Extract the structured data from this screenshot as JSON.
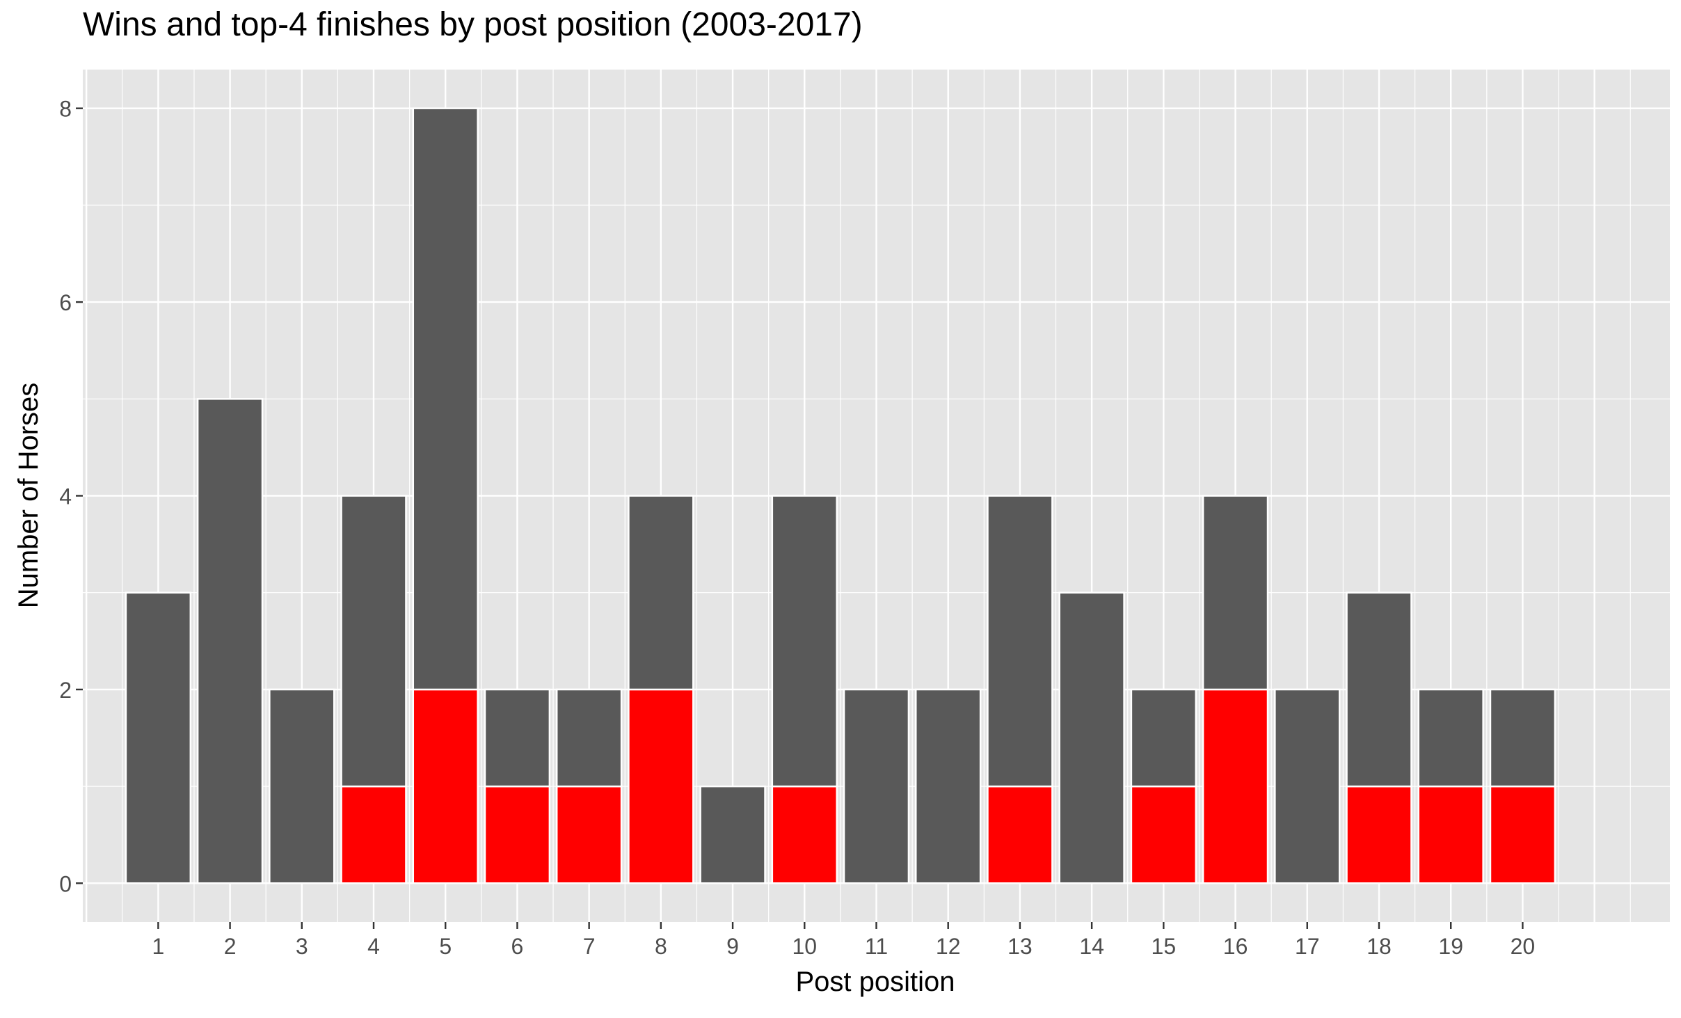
{
  "chart_data": {
    "type": "bar",
    "stacked": true,
    "title": "Wins and top-4 finishes by post position (2003-2017)",
    "xlabel": "Post position",
    "ylabel": "Number of Horses",
    "categories": [
      "1",
      "2",
      "3",
      "4",
      "5",
      "6",
      "7",
      "8",
      "9",
      "10",
      "11",
      "12",
      "13",
      "14",
      "15",
      "16",
      "17",
      "18",
      "19",
      "20"
    ],
    "series": [
      {
        "key": "wins",
        "values": [
          0,
          0,
          0,
          1,
          2,
          1,
          1,
          2,
          0,
          1,
          0,
          0,
          1,
          0,
          1,
          2,
          0,
          1,
          1,
          1
        ],
        "color": "#FF0000"
      },
      {
        "key": "other_top4",
        "values": [
          3,
          5,
          2,
          3,
          6,
          1,
          1,
          2,
          1,
          3,
          2,
          2,
          3,
          3,
          1,
          2,
          2,
          2,
          1,
          1
        ],
        "color": "#595959"
      }
    ],
    "totals": [
      3,
      5,
      2,
      4,
      8,
      2,
      2,
      4,
      1,
      4,
      2,
      2,
      4,
      3,
      2,
      4,
      2,
      3,
      2,
      2
    ],
    "ylim": [
      -0.4,
      8.4
    ],
    "yticks": [
      0,
      2,
      4,
      6,
      8
    ],
    "grid": true,
    "legend": "none",
    "panel_background": "#E5E5E5",
    "grid_color": "#FFFFFF"
  }
}
